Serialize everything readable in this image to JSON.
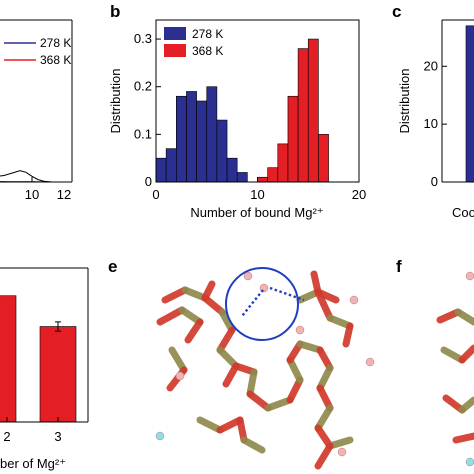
{
  "panels": {
    "a": {
      "letter": ""
    },
    "b": {
      "letter": "b"
    },
    "c": {
      "letter": "c"
    },
    "d": {
      "letter": ""
    },
    "e": {
      "letter": "e"
    },
    "f": {
      "letter": "f"
    }
  },
  "colors": {
    "blue": "#2b2f8f",
    "red": "#e31e24",
    "mol_red": "#d23a2c",
    "mol_olive": "#8f8a4d",
    "ion_pink": "#f0b4b4",
    "ion_cyan": "#8fe0e4",
    "circle": "#1f3fc0"
  },
  "chart_data": [
    {
      "panel": "a",
      "type": "line",
      "title": "",
      "xlabel": "",
      "ylabel": "",
      "xlim": [
        7.4,
        12
      ],
      "ylim": [
        0,
        1
      ],
      "xticks": [
        "10",
        "12"
      ],
      "legend": [
        "278 K",
        "368 K"
      ],
      "series": [
        {
          "name": "278 K",
          "color": "#2b2f8f",
          "x": [
            7.4,
            8.0,
            8.6,
            9.0,
            9.4,
            9.7,
            10.0,
            10.3,
            10.6,
            11.0,
            12.0
          ],
          "y": [
            0.02,
            0.03,
            0.04,
            0.055,
            0.07,
            0.06,
            0.035,
            0.015,
            0.005,
            0.0,
            0.0
          ]
        },
        {
          "name": "368 K",
          "color": "#e31e24",
          "x": [
            7.4,
            8.0,
            9.0,
            10.0,
            11.0,
            12.0
          ],
          "y": [
            0.004,
            0.003,
            0.002,
            0.001,
            0.0,
            0.0
          ]
        }
      ]
    },
    {
      "panel": "b",
      "type": "bar",
      "title": "",
      "xlabel": "Number of bound Mg²⁺",
      "ylabel": "Distribution",
      "xlim": [
        0,
        20
      ],
      "ylim": [
        0,
        0.34
      ],
      "xticks": [
        "0",
        "10",
        "20"
      ],
      "yticks": [
        "0",
        "0.1",
        "0.2",
        "0.3"
      ],
      "legend_position": "top-left",
      "series": [
        {
          "name": "278 K",
          "color": "#2b2f8f",
          "x": [
            0,
            1,
            2,
            3,
            4,
            5,
            6,
            7,
            8
          ],
          "values": [
            0.05,
            0.07,
            0.18,
            0.19,
            0.17,
            0.2,
            0.13,
            0.05,
            0.02
          ]
        },
        {
          "name": "368 K",
          "color": "#e31e24",
          "x": [
            10,
            11,
            12,
            13,
            14,
            15,
            16
          ],
          "values": [
            0.01,
            0.03,
            0.08,
            0.18,
            0.28,
            0.3,
            0.1
          ]
        }
      ]
    },
    {
      "panel": "c",
      "type": "bar",
      "title": "",
      "xlabel": "Coo",
      "ylabel": "Distribution",
      "ylim": [
        0,
        28
      ],
      "yticks": [
        "0",
        "10",
        "20"
      ],
      "series": [
        {
          "name": "",
          "color": "#2b2f8f",
          "values": [
            27
          ]
        }
      ]
    },
    {
      "panel": "d",
      "type": "bar",
      "title": "",
      "xlabel": "ber of Mg²⁺",
      "ylabel": "",
      "ylim": [
        0,
        1
      ],
      "categories": [
        "2",
        "3"
      ],
      "series": [
        {
          "name": "",
          "color": "#e31e24",
          "values": [
            0.82,
            0.62
          ],
          "errors": [
            0.0,
            0.03
          ]
        }
      ]
    }
  ]
}
